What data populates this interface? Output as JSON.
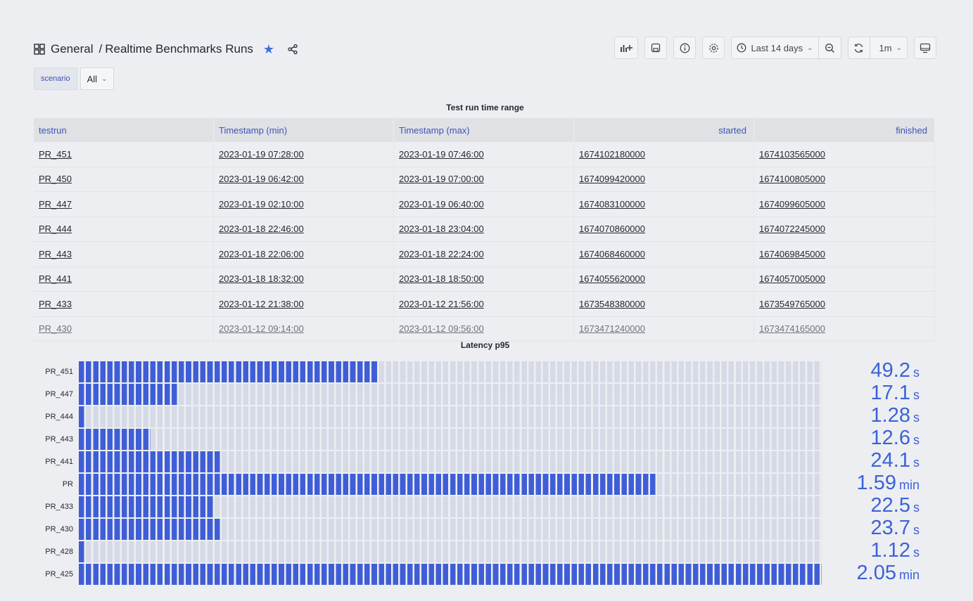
{
  "header": {
    "folder": "General",
    "separator": "/",
    "dashboard_title": "Realtime Benchmarks Runs"
  },
  "toolbar": {
    "time_range": "Last 14 days",
    "refresh_interval": "1m"
  },
  "variables": {
    "scenario_label": "scenario",
    "scenario_value": "All"
  },
  "table_panel": {
    "title": "Test run time range",
    "columns": [
      "testrun",
      "Timestamp (min)",
      "Timestamp (max)",
      "started",
      "finished"
    ],
    "rows": [
      [
        "PR_451",
        "2023-01-19 07:28:00",
        "2023-01-19 07:46:00",
        "1674102180000",
        "1674103565000"
      ],
      [
        "PR_450",
        "2023-01-19 06:42:00",
        "2023-01-19 07:00:00",
        "1674099420000",
        "1674100805000"
      ],
      [
        "PR_447",
        "2023-01-19 02:10:00",
        "2023-01-19 06:40:00",
        "1674083100000",
        "1674099605000"
      ],
      [
        "PR_444",
        "2023-01-18 22:46:00",
        "2023-01-18 23:04:00",
        "1674070860000",
        "1674072245000"
      ],
      [
        "PR_443",
        "2023-01-18 22:06:00",
        "2023-01-18 22:24:00",
        "1674068460000",
        "1674069845000"
      ],
      [
        "PR_441",
        "2023-01-18 18:32:00",
        "2023-01-18 18:50:00",
        "1674055620000",
        "1674057005000"
      ],
      [
        "PR_433",
        "2023-01-12 21:38:00",
        "2023-01-12 21:56:00",
        "1673548380000",
        "1673549765000"
      ],
      [
        "PR_430",
        "2023-01-12 09:14:00",
        "2023-01-12 09:56:00",
        "1673471240000",
        "1673474165000"
      ]
    ]
  },
  "latency_panel": {
    "title": "Latency p95",
    "max_seconds": 123,
    "rows": [
      {
        "name": "PR_451",
        "value": "49.2",
        "unit": "s",
        "fraction": 0.405
      },
      {
        "name": "PR_447",
        "value": "17.1",
        "unit": "s",
        "fraction": 0.135
      },
      {
        "name": "PR_444",
        "value": "1.28",
        "unit": "s",
        "fraction": 0.01
      },
      {
        "name": "PR_443",
        "value": "12.6",
        "unit": "s",
        "fraction": 0.1
      },
      {
        "name": "PR_441",
        "value": "24.1",
        "unit": "s",
        "fraction": 0.19
      },
      {
        "name": "PR",
        "value": "1.59",
        "unit": "min",
        "fraction": 0.775
      },
      {
        "name": "PR_433",
        "value": "22.5",
        "unit": "s",
        "fraction": 0.18
      },
      {
        "name": "PR_430",
        "value": "23.7",
        "unit": "s",
        "fraction": 0.19
      },
      {
        "name": "PR_428",
        "value": "1.12",
        "unit": "s",
        "fraction": 0.01
      },
      {
        "name": "PR_425",
        "value": "2.05",
        "unit": "min",
        "fraction": 1.0
      }
    ]
  },
  "colors": {
    "accent": "#3d62d6",
    "bar_fill": "#3f5ed6",
    "bar_empty": "#d5dae6",
    "star": "#3d71d9"
  }
}
